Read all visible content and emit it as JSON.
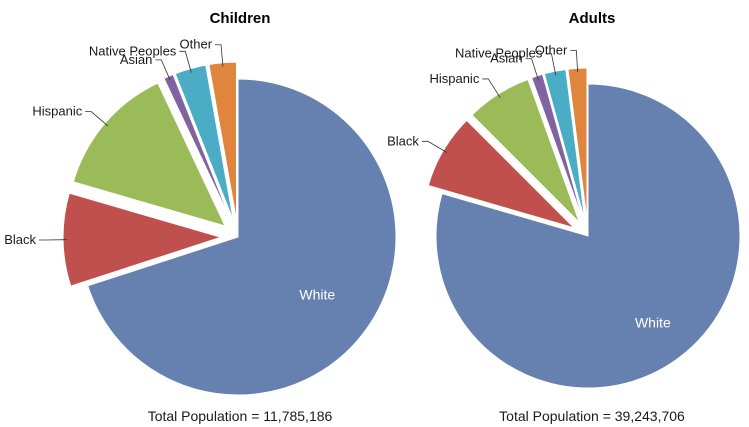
{
  "chart_data": [
    {
      "type": "pie",
      "title": "Children",
      "caption": "Total Population = 11,785,186",
      "slices": [
        {
          "label": "White",
          "value": 70.0,
          "color": "#6680B0"
        },
        {
          "label": "Black",
          "value": 9.5,
          "color": "#C0504D"
        },
        {
          "label": "Hispanic",
          "value": 13.5,
          "color": "#9BBB59"
        },
        {
          "label": "Asian",
          "value": 1.0,
          "color": "#8064A2"
        },
        {
          "label": "Native Peoples",
          "value": 3.2,
          "color": "#4BACC6"
        },
        {
          "label": "Other",
          "value": 2.8,
          "color": "#E0853D"
        }
      ]
    },
    {
      "type": "pie",
      "title": "Adults",
      "caption": "Total Population = 39,243,706",
      "slices": [
        {
          "label": "White",
          "value": 79.5,
          "color": "#6680B0"
        },
        {
          "label": "Black",
          "value": 8.0,
          "color": "#C0504D"
        },
        {
          "label": "Hispanic",
          "value": 7.0,
          "color": "#9BBB59"
        },
        {
          "label": "Asian",
          "value": 1.2,
          "color": "#8064A2"
        },
        {
          "label": "Native Peoples",
          "value": 2.3,
          "color": "#4BACC6"
        },
        {
          "label": "Other",
          "value": 2.0,
          "color": "#E0853D"
        }
      ]
    }
  ]
}
